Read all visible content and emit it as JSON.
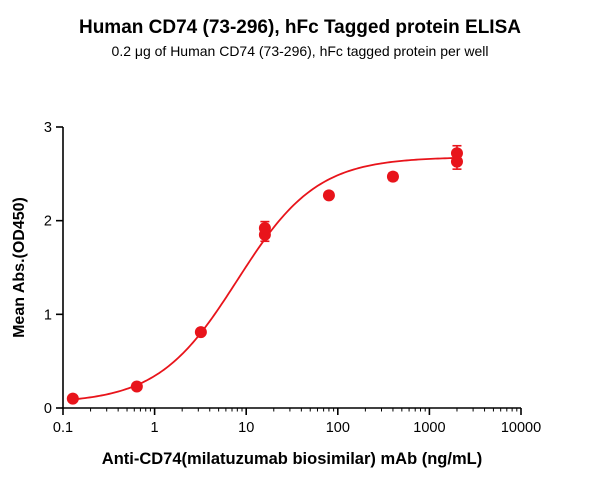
{
  "figure": {
    "title": "Human CD74 (73-296), hFc Tagged protein ELISA",
    "subtitle": "0.2 μg of Human CD74 (73-296), hFc tagged protein per well"
  },
  "chart_data": {
    "type": "scatter",
    "title": "Human CD74 (73-296), hFc Tagged protein ELISA",
    "subtitle": "0.2 μg of Human CD74 (73-296), hFc tagged protein per well",
    "xlabel": "Anti-CD74(milatuzumab biosimilar) mAb  (ng/mL)",
    "ylabel": "Mean Abs.(OD450)",
    "x_scale": "log",
    "xlim": [
      0.1,
      10000
    ],
    "ylim": [
      0,
      3
    ],
    "x_ticks": [
      0.1,
      1,
      10,
      100,
      1000,
      10000
    ],
    "x_tick_labels": [
      "0.1",
      "1",
      "10",
      "100",
      "1000",
      "10000"
    ],
    "y_ticks": [
      0,
      1,
      2,
      3
    ],
    "y_tick_labels": [
      "0",
      "1",
      "2",
      "3"
    ],
    "grid": false,
    "legend": "none",
    "marker_color": "#e8141b",
    "curve_color": "#e8141b",
    "series": [
      {
        "name": "Anti-CD74(milatuzumab biosimilar) mAb",
        "points": [
          {
            "x": 0.128,
            "y": 0.1,
            "err": 0.02
          },
          {
            "x": 0.64,
            "y": 0.23,
            "err": 0.02
          },
          {
            "x": 3.2,
            "y": 0.81,
            "err": 0.03
          },
          {
            "x": 16,
            "y": 1.85,
            "err": 0.07
          },
          {
            "x": 16,
            "y": 1.92,
            "err": 0.07
          },
          {
            "x": 80,
            "y": 2.27,
            "err": 0.03
          },
          {
            "x": 400,
            "y": 2.47,
            "err": 0.04
          },
          {
            "x": 2000,
            "y": 2.63,
            "err": 0.08
          },
          {
            "x": 2000,
            "y": 2.72,
            "err": 0.08
          }
        ]
      }
    ],
    "fit": {
      "model": "4PL",
      "bottom": 0.05,
      "top": 2.68,
      "ec50": 8.0,
      "hill": 1.0,
      "x_range": [
        0.128,
        2000
      ]
    }
  }
}
